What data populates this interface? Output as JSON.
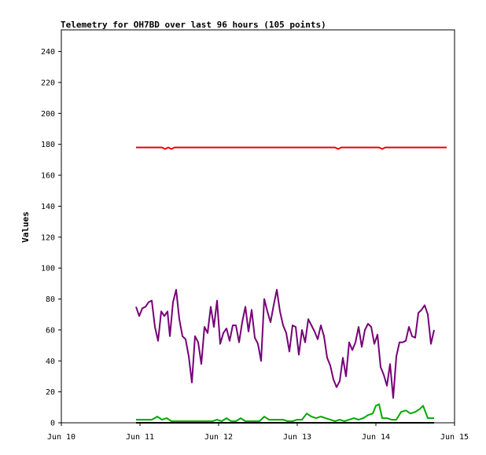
{
  "chart_data": {
    "type": "line",
    "title": "Telemetry for OH7BD over last 96 hours (105 points)",
    "xlabel": "",
    "ylabel": "Values",
    "xlim": [
      0,
      5
    ],
    "ylim": [
      0,
      254
    ],
    "x_ticks": [
      {
        "value": 0,
        "label": "Jun 10"
      },
      {
        "value": 1,
        "label": "Jun 11"
      },
      {
        "value": 2,
        "label": "Jun 12"
      },
      {
        "value": 3,
        "label": "Jun 13"
      },
      {
        "value": 4,
        "label": "Jun 14"
      },
      {
        "value": 5,
        "label": "Jun 15"
      }
    ],
    "y_ticks": [
      0,
      20,
      40,
      60,
      80,
      100,
      120,
      140,
      160,
      180,
      200,
      220,
      240
    ],
    "grid": false,
    "legend": "none",
    "series": [
      {
        "color": "#ee0000",
        "points": [
          [
            0.95,
            178
          ],
          [
            1.28,
            178
          ],
          [
            1.32,
            177
          ],
          [
            1.36,
            178
          ],
          [
            1.4,
            177
          ],
          [
            1.44,
            178
          ],
          [
            2.0,
            178
          ],
          [
            3.0,
            178
          ],
          [
            3.48,
            178
          ],
          [
            3.52,
            177
          ],
          [
            3.56,
            178
          ],
          [
            4.0,
            178
          ],
          [
            4.04,
            178
          ],
          [
            4.08,
            177
          ],
          [
            4.12,
            178
          ],
          [
            4.5,
            178
          ],
          [
            4.9,
            178
          ]
        ]
      },
      {
        "color": "#770077",
        "points": [
          [
            0.95,
            75
          ],
          [
            0.99,
            69
          ],
          [
            1.03,
            74
          ],
          [
            1.07,
            75
          ],
          [
            1.11,
            78
          ],
          [
            1.15,
            79
          ],
          [
            1.19,
            62
          ],
          [
            1.23,
            53
          ],
          [
            1.27,
            72
          ],
          [
            1.31,
            69
          ],
          [
            1.35,
            72
          ],
          [
            1.38,
            56
          ],
          [
            1.42,
            78
          ],
          [
            1.46,
            86
          ],
          [
            1.5,
            67
          ],
          [
            1.54,
            56
          ],
          [
            1.58,
            54
          ],
          [
            1.62,
            43
          ],
          [
            1.66,
            26
          ],
          [
            1.7,
            56
          ],
          [
            1.74,
            52
          ],
          [
            1.78,
            38
          ],
          [
            1.82,
            62
          ],
          [
            1.86,
            58
          ],
          [
            1.9,
            75
          ],
          [
            1.94,
            62
          ],
          [
            1.98,
            79
          ],
          [
            2.02,
            51
          ],
          [
            2.06,
            58
          ],
          [
            2.1,
            61
          ],
          [
            2.14,
            53
          ],
          [
            2.18,
            63
          ],
          [
            2.22,
            63
          ],
          [
            2.26,
            52
          ],
          [
            2.3,
            65
          ],
          [
            2.34,
            75
          ],
          [
            2.38,
            59
          ],
          [
            2.42,
            73
          ],
          [
            2.46,
            55
          ],
          [
            2.5,
            51
          ],
          [
            2.54,
            40
          ],
          [
            2.58,
            80
          ],
          [
            2.62,
            72
          ],
          [
            2.66,
            65
          ],
          [
            2.7,
            76
          ],
          [
            2.74,
            86
          ],
          [
            2.78,
            72
          ],
          [
            2.82,
            63
          ],
          [
            2.86,
            58
          ],
          [
            2.9,
            46
          ],
          [
            2.94,
            63
          ],
          [
            2.98,
            62
          ],
          [
            3.02,
            44
          ],
          [
            3.06,
            60
          ],
          [
            3.1,
            52
          ],
          [
            3.14,
            67
          ],
          [
            3.18,
            63
          ],
          [
            3.22,
            59
          ],
          [
            3.26,
            54
          ],
          [
            3.3,
            63
          ],
          [
            3.34,
            56
          ],
          [
            3.38,
            42
          ],
          [
            3.42,
            37
          ],
          [
            3.46,
            28
          ],
          [
            3.5,
            23
          ],
          [
            3.54,
            27
          ],
          [
            3.58,
            42
          ],
          [
            3.62,
            30
          ],
          [
            3.66,
            52
          ],
          [
            3.7,
            47
          ],
          [
            3.74,
            52
          ],
          [
            3.78,
            62
          ],
          [
            3.82,
            49
          ],
          [
            3.86,
            60
          ],
          [
            3.9,
            64
          ],
          [
            3.94,
            62
          ],
          [
            3.98,
            51
          ],
          [
            4.02,
            57
          ],
          [
            4.06,
            36
          ],
          [
            4.1,
            31
          ],
          [
            4.14,
            24
          ],
          [
            4.18,
            38
          ],
          [
            4.22,
            16
          ],
          [
            4.26,
            43
          ],
          [
            4.3,
            52
          ],
          [
            4.34,
            52
          ],
          [
            4.38,
            53
          ],
          [
            4.42,
            62
          ],
          [
            4.46,
            56
          ],
          [
            4.5,
            55
          ],
          [
            4.54,
            71
          ],
          [
            4.58,
            73
          ],
          [
            4.62,
            76
          ],
          [
            4.66,
            70
          ],
          [
            4.7,
            51
          ],
          [
            4.74,
            60
          ]
        ]
      },
      {
        "color": "#00aa00",
        "points": [
          [
            0.95,
            2
          ],
          [
            1.05,
            2
          ],
          [
            1.15,
            2
          ],
          [
            1.22,
            4
          ],
          [
            1.28,
            2
          ],
          [
            1.34,
            3
          ],
          [
            1.4,
            1
          ],
          [
            1.5,
            1
          ],
          [
            1.6,
            1
          ],
          [
            1.7,
            1
          ],
          [
            1.8,
            1
          ],
          [
            1.92,
            1
          ],
          [
            1.98,
            2
          ],
          [
            2.04,
            1
          ],
          [
            2.1,
            3
          ],
          [
            2.16,
            1
          ],
          [
            2.22,
            1
          ],
          [
            2.28,
            3
          ],
          [
            2.34,
            1
          ],
          [
            2.4,
            1
          ],
          [
            2.46,
            1
          ],
          [
            2.52,
            1
          ],
          [
            2.58,
            4
          ],
          [
            2.64,
            2
          ],
          [
            2.7,
            2
          ],
          [
            2.76,
            2
          ],
          [
            2.82,
            2
          ],
          [
            2.88,
            1
          ],
          [
            2.94,
            1
          ],
          [
            3.0,
            2
          ],
          [
            3.06,
            2
          ],
          [
            3.12,
            6
          ],
          [
            3.18,
            4
          ],
          [
            3.24,
            3
          ],
          [
            3.3,
            4
          ],
          [
            3.36,
            3
          ],
          [
            3.42,
            2
          ],
          [
            3.48,
            1
          ],
          [
            3.54,
            2
          ],
          [
            3.6,
            1
          ],
          [
            3.66,
            2
          ],
          [
            3.72,
            3
          ],
          [
            3.78,
            2
          ],
          [
            3.84,
            3
          ],
          [
            3.9,
            5
          ],
          [
            3.96,
            6
          ],
          [
            4.0,
            11
          ],
          [
            4.04,
            12
          ],
          [
            4.08,
            3
          ],
          [
            4.14,
            3
          ],
          [
            4.2,
            2
          ],
          [
            4.26,
            2
          ],
          [
            4.32,
            7
          ],
          [
            4.38,
            8
          ],
          [
            4.44,
            6
          ],
          [
            4.5,
            7
          ],
          [
            4.56,
            9
          ],
          [
            4.6,
            11
          ],
          [
            4.66,
            3
          ],
          [
            4.74,
            3
          ]
        ]
      },
      {
        "color": "#000000",
        "points": [
          [
            0.95,
            0
          ],
          [
            2.0,
            0
          ],
          [
            3.0,
            0
          ],
          [
            4.0,
            0
          ],
          [
            4.74,
            0
          ]
        ]
      }
    ]
  }
}
